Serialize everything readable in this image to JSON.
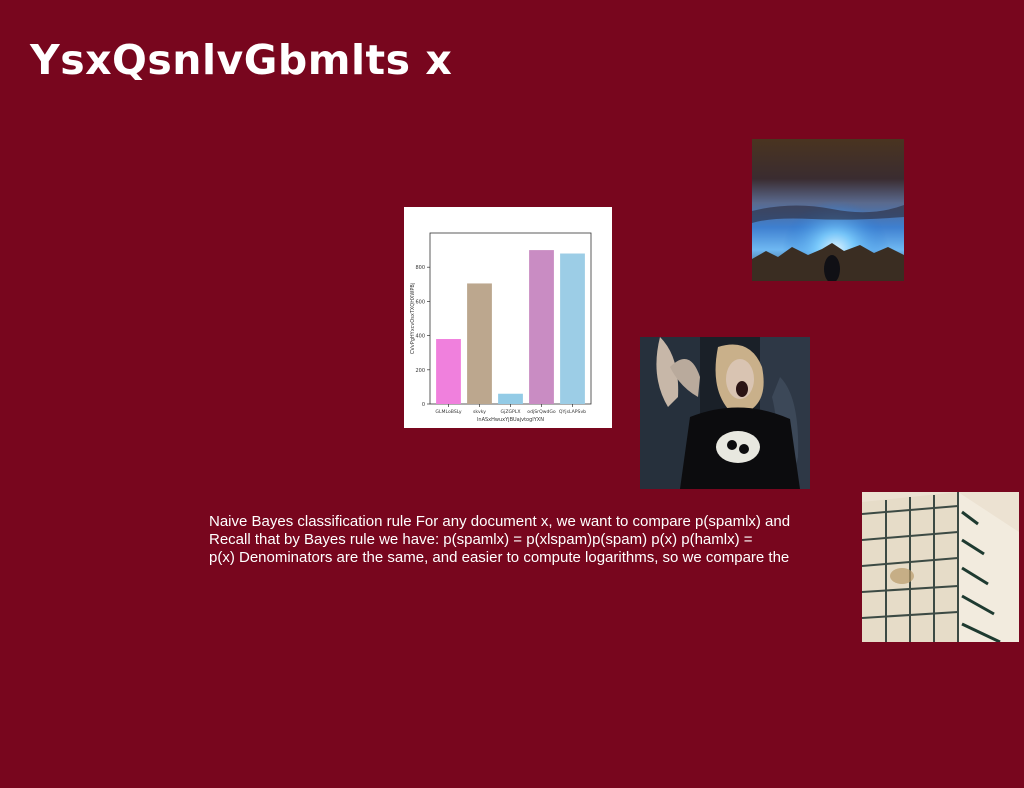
{
  "slide": {
    "title": "YsxQsnlvGbmlts x",
    "body_lines": [
      "Naive Bayes classification rule For any document x, we want to compare p(spamlx) and",
      "Recall that by Bayes rule we have: p(spamlx) = p(xlspam)p(spam) p(x) p(hamlx) =",
      "p(x) Denominators are the same, and easier to compute logarithms, so we compare the"
    ]
  },
  "images": {
    "sky": "sunrise-over-mountains-photo",
    "person": "person-shouting-at-concert-photo",
    "building": "glass-building-facade-photo"
  },
  "chart_data": {
    "type": "bar",
    "categories": [
      "GLMLoBSLy",
      "skvky",
      "GjZGPLX",
      "odjSrQwdGo",
      "QYjsLAPSvb"
    ],
    "values": [
      380,
      705,
      60,
      900,
      880
    ],
    "colors": [
      "#f080dd",
      "#bca78e",
      "#93cbe6",
      "#c98cc3",
      "#9ccde6"
    ],
    "xlabel": "lnASxHwuxYjBUajvtogIYXN",
    "ylabel": "CVvPgHYxcvOsxTXQHXWPBj",
    "ylim": [
      0,
      1000
    ],
    "yticks": [
      0,
      200,
      400,
      600,
      800
    ]
  }
}
